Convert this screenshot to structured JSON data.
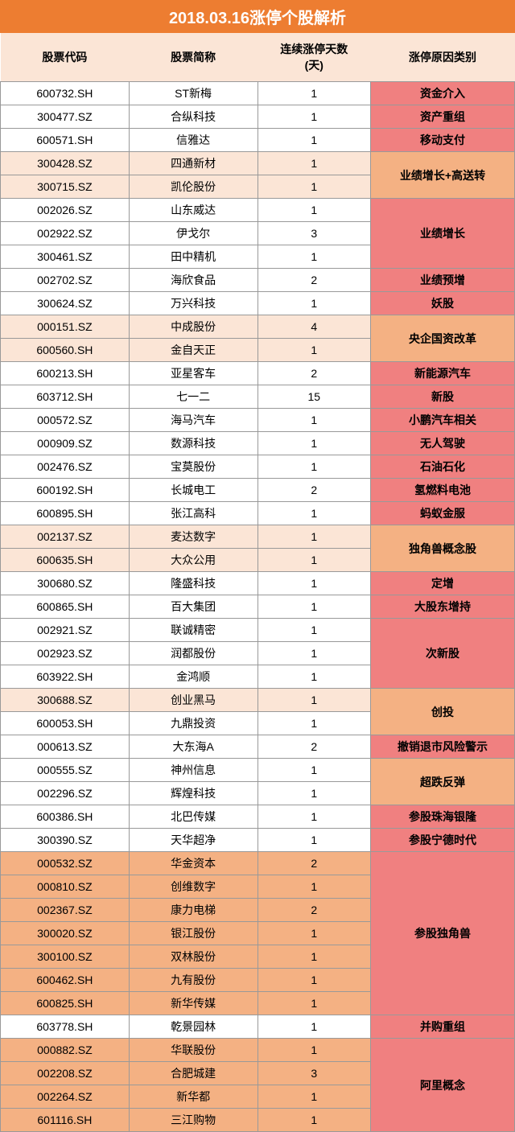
{
  "title": "2018.03.16涨停个股解析",
  "title_bg": "#ed7d31",
  "title_color": "#ffffff",
  "title_fontsize": "20px",
  "headers": [
    "股票代码",
    "股票简称",
    "连续涨停天数(天)",
    "涨停原因类别"
  ],
  "header_bg": "#fbe5d6",
  "header_color": "#000000",
  "col_widths": [
    "25%",
    "25%",
    "22%",
    "28%"
  ],
  "row_bg_white": "#ffffff",
  "row_bg_peach": "#fbe5d6",
  "row_bg_orange": "#f4b183",
  "reason_bg_pink": "#f08080",
  "reason_bg_salmon": "#f4b183",
  "font_size": "14px",
  "rows": [
    {
      "code": "600732.SH",
      "name": "ST新梅",
      "days": "1",
      "bg": "white"
    },
    {
      "code": "300477.SZ",
      "name": "合纵科技",
      "days": "1",
      "bg": "white"
    },
    {
      "code": "600571.SH",
      "name": "信雅达",
      "days": "1",
      "bg": "white"
    },
    {
      "code": "300428.SZ",
      "name": "四通新材",
      "days": "1",
      "bg": "peach"
    },
    {
      "code": "300715.SZ",
      "name": "凯伦股份",
      "days": "1",
      "bg": "peach"
    },
    {
      "code": "002026.SZ",
      "name": "山东威达",
      "days": "1",
      "bg": "white"
    },
    {
      "code": "002922.SZ",
      "name": "伊戈尔",
      "days": "3",
      "bg": "white"
    },
    {
      "code": "300461.SZ",
      "name": "田中精机",
      "days": "1",
      "bg": "white"
    },
    {
      "code": "002702.SZ",
      "name": "海欣食品",
      "days": "2",
      "bg": "white"
    },
    {
      "code": "300624.SZ",
      "name": "万兴科技",
      "days": "1",
      "bg": "white"
    },
    {
      "code": "000151.SZ",
      "name": "中成股份",
      "days": "4",
      "bg": "peach"
    },
    {
      "code": "600560.SH",
      "name": "金自天正",
      "days": "1",
      "bg": "peach"
    },
    {
      "code": "600213.SH",
      "name": "亚星客车",
      "days": "2",
      "bg": "white"
    },
    {
      "code": "603712.SH",
      "name": "七一二",
      "days": "15",
      "bg": "white"
    },
    {
      "code": "000572.SZ",
      "name": "海马汽车",
      "days": "1",
      "bg": "white"
    },
    {
      "code": "000909.SZ",
      "name": "数源科技",
      "days": "1",
      "bg": "white"
    },
    {
      "code": "002476.SZ",
      "name": "宝莫股份",
      "days": "1",
      "bg": "white"
    },
    {
      "code": "600192.SH",
      "name": "长城电工",
      "days": "2",
      "bg": "white"
    },
    {
      "code": "600895.SH",
      "name": "张江高科",
      "days": "1",
      "bg": "white"
    },
    {
      "code": "002137.SZ",
      "name": "麦达数字",
      "days": "1",
      "bg": "peach"
    },
    {
      "code": "600635.SH",
      "name": "大众公用",
      "days": "1",
      "bg": "peach"
    },
    {
      "code": "300680.SZ",
      "name": "隆盛科技",
      "days": "1",
      "bg": "white"
    },
    {
      "code": "600865.SH",
      "name": "百大集团",
      "days": "1",
      "bg": "white"
    },
    {
      "code": "002921.SZ",
      "name": "联诚精密",
      "days": "1",
      "bg": "white"
    },
    {
      "code": "002923.SZ",
      "name": "润都股份",
      "days": "1",
      "bg": "white"
    },
    {
      "code": "603922.SH",
      "name": "金鸿顺",
      "days": "1",
      "bg": "white"
    },
    {
      "code": "300688.SZ",
      "name": "创业黑马",
      "days": "1",
      "bg": "peach"
    },
    {
      "code": "600053.SH",
      "name": "九鼎投资",
      "days": "1",
      "bg": "white"
    },
    {
      "code": "000613.SZ",
      "name": "大东海A",
      "days": "2",
      "bg": "white"
    },
    {
      "code": "000555.SZ",
      "name": "神州信息",
      "days": "1",
      "bg": "white"
    },
    {
      "code": "002296.SZ",
      "name": "辉煌科技",
      "days": "1",
      "bg": "white"
    },
    {
      "code": "600386.SH",
      "name": "北巴传媒",
      "days": "1",
      "bg": "white"
    },
    {
      "code": "300390.SZ",
      "name": "天华超净",
      "days": "1",
      "bg": "white"
    },
    {
      "code": "000532.SZ",
      "name": "华金资本",
      "days": "2",
      "bg": "orange"
    },
    {
      "code": "000810.SZ",
      "name": "创维数字",
      "days": "1",
      "bg": "orange"
    },
    {
      "code": "002367.SZ",
      "name": "康力电梯",
      "days": "2",
      "bg": "orange"
    },
    {
      "code": "300020.SZ",
      "name": "银江股份",
      "days": "1",
      "bg": "orange"
    },
    {
      "code": "300100.SZ",
      "name": "双林股份",
      "days": "1",
      "bg": "orange"
    },
    {
      "code": "600462.SH",
      "name": "九有股份",
      "days": "1",
      "bg": "orange"
    },
    {
      "code": "600825.SH",
      "name": "新华传媒",
      "days": "1",
      "bg": "orange"
    },
    {
      "code": "603778.SH",
      "name": "乾景园林",
      "days": "1",
      "bg": "white"
    },
    {
      "code": "000882.SZ",
      "name": "华联股份",
      "days": "1",
      "bg": "orange"
    },
    {
      "code": "002208.SZ",
      "name": "合肥城建",
      "days": "3",
      "bg": "orange"
    },
    {
      "code": "002264.SZ",
      "name": "新华都",
      "days": "1",
      "bg": "orange"
    },
    {
      "code": "601116.SH",
      "name": "三江购物",
      "days": "1",
      "bg": "orange"
    }
  ],
  "reasons": [
    {
      "text": "资金介入",
      "span": 1,
      "bg": "pink"
    },
    {
      "text": "资产重组",
      "span": 1,
      "bg": "pink"
    },
    {
      "text": "移动支付",
      "span": 1,
      "bg": "pink"
    },
    {
      "text": "业绩增长+高送转",
      "span": 2,
      "bg": "salmon"
    },
    {
      "text": "业绩增长",
      "span": 3,
      "bg": "pink"
    },
    {
      "text": "业绩预增",
      "span": 1,
      "bg": "pink"
    },
    {
      "text": "妖股",
      "span": 1,
      "bg": "pink"
    },
    {
      "text": "央企国资改革",
      "span": 2,
      "bg": "salmon"
    },
    {
      "text": "新能源汽车",
      "span": 1,
      "bg": "pink"
    },
    {
      "text": "新股",
      "span": 1,
      "bg": "pink"
    },
    {
      "text": "小鹏汽车相关",
      "span": 1,
      "bg": "pink"
    },
    {
      "text": "无人驾驶",
      "span": 1,
      "bg": "pink"
    },
    {
      "text": "石油石化",
      "span": 1,
      "bg": "pink"
    },
    {
      "text": "氢燃料电池",
      "span": 1,
      "bg": "pink"
    },
    {
      "text": "蚂蚁金服",
      "span": 1,
      "bg": "pink"
    },
    {
      "text": "独角兽概念股",
      "span": 2,
      "bg": "salmon"
    },
    {
      "text": "定增",
      "span": 1,
      "bg": "pink"
    },
    {
      "text": "大股东增持",
      "span": 1,
      "bg": "pink"
    },
    {
      "text": "次新股",
      "span": 3,
      "bg": "pink"
    },
    {
      "text": "创投",
      "span": 2,
      "bg": "salmon"
    },
    {
      "text": "撤销退市风险警示",
      "span": 1,
      "bg": "pink"
    },
    {
      "text": "超跌反弹",
      "span": 2,
      "bg": "salmon"
    },
    {
      "text": "参股珠海银隆",
      "span": 1,
      "bg": "pink"
    },
    {
      "text": "参股宁德时代",
      "span": 1,
      "bg": "pink"
    },
    {
      "text": "参股独角兽",
      "span": 7,
      "bg": "pink"
    },
    {
      "text": "并购重组",
      "span": 1,
      "bg": "pink"
    },
    {
      "text": "阿里概念",
      "span": 4,
      "bg": "pink"
    }
  ]
}
